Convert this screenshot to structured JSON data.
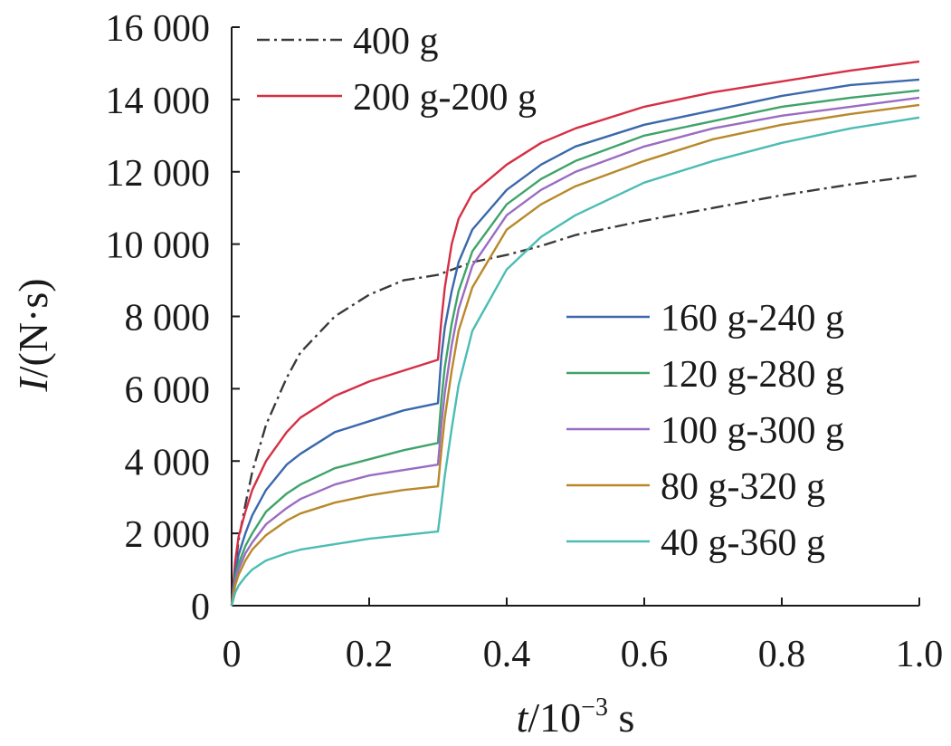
{
  "chart_data": {
    "type": "line",
    "xlabel": {
      "italic": "t",
      "rest": "/10",
      "sup": "−3",
      "unit": " s"
    },
    "ylabel": {
      "italic": "I",
      "rest": "/(N·s)"
    },
    "xlim": [
      0,
      1.0
    ],
    "ylim": [
      0,
      16000
    ],
    "x_ticks": [
      0,
      0.2,
      0.4,
      0.6,
      0.8,
      1.0
    ],
    "x_tick_labels": [
      "0",
      "0.2",
      "0.4",
      "0.6",
      "0.8",
      "1.0"
    ],
    "y_ticks": [
      0,
      2000,
      4000,
      6000,
      8000,
      10000,
      12000,
      14000,
      16000
    ],
    "y_tick_labels": [
      "0",
      "2 000",
      "4 000",
      "6 000",
      "8 000",
      "10 000",
      "12 000",
      "14 000",
      "16 000"
    ],
    "grid": false,
    "legends": [
      {
        "placement": "top-left",
        "entries": [
          "400 g",
          "200 g-200 g"
        ]
      },
      {
        "placement": "center-right",
        "entries": [
          "160 g-240 g",
          "120 g-280 g",
          "100 g-300 g",
          "80 g-320 g",
          "40 g-360 g"
        ]
      }
    ],
    "x": [
      0,
      0.005,
      0.01,
      0.02,
      0.03,
      0.05,
      0.08,
      0.1,
      0.15,
      0.2,
      0.25,
      0.3,
      0.32,
      0.35,
      0.4,
      0.45,
      0.5,
      0.6,
      0.7,
      0.8,
      0.9,
      1.0
    ],
    "series": [
      {
        "name": "400 g",
        "color": "#3a3a3a",
        "dash": "dash-dot",
        "x": [
          0,
          0.005,
          0.01,
          0.02,
          0.03,
          0.05,
          0.08,
          0.1,
          0.15,
          0.2,
          0.25,
          0.3,
          0.35,
          0.4,
          0.45,
          0.5,
          0.6,
          0.7,
          0.8,
          0.9,
          1.0
        ],
        "values": [
          0,
          1000,
          1800,
          2800,
          3700,
          5000,
          6300,
          7000,
          8000,
          8600,
          9000,
          9150,
          9500,
          9700,
          9950,
          10250,
          10650,
          11000,
          11350,
          11650,
          11900
        ]
      },
      {
        "name": "200 g-200 g",
        "color": "#d62f45",
        "x": [
          0,
          0.005,
          0.01,
          0.02,
          0.03,
          0.05,
          0.08,
          0.1,
          0.15,
          0.2,
          0.25,
          0.3,
          0.3,
          0.305,
          0.31,
          0.32,
          0.33,
          0.35,
          0.4,
          0.45,
          0.5,
          0.6,
          0.7,
          0.8,
          0.9,
          1.0
        ],
        "values": [
          0,
          1200,
          1900,
          2600,
          3200,
          4000,
          4800,
          5200,
          5800,
          6200,
          6500,
          6800,
          6800,
          7900,
          8800,
          10000,
          10700,
          11400,
          12200,
          12800,
          13200,
          13800,
          14200,
          14500,
          14800,
          15050
        ]
      },
      {
        "name": "160 g-240 g",
        "color": "#3a68ac",
        "x": [
          0,
          0.005,
          0.01,
          0.02,
          0.03,
          0.05,
          0.08,
          0.1,
          0.15,
          0.2,
          0.25,
          0.3,
          0.3,
          0.305,
          0.31,
          0.32,
          0.33,
          0.35,
          0.4,
          0.45,
          0.5,
          0.6,
          0.7,
          0.8,
          0.9,
          1.0
        ],
        "values": [
          0,
          900,
          1400,
          2000,
          2500,
          3200,
          3900,
          4200,
          4800,
          5100,
          5400,
          5600,
          5600,
          6900,
          7700,
          8700,
          9500,
          10400,
          11500,
          12200,
          12700,
          13300,
          13700,
          14100,
          14400,
          14550
        ]
      },
      {
        "name": "120 g-280 g",
        "color": "#3fa36a",
        "x": [
          0,
          0.005,
          0.01,
          0.02,
          0.03,
          0.05,
          0.08,
          0.1,
          0.15,
          0.2,
          0.25,
          0.3,
          0.3,
          0.305,
          0.31,
          0.32,
          0.33,
          0.35,
          0.4,
          0.45,
          0.5,
          0.6,
          0.7,
          0.8,
          0.9,
          1.0
        ],
        "values": [
          0,
          750,
          1150,
          1650,
          2000,
          2600,
          3100,
          3350,
          3800,
          4050,
          4300,
          4500,
          4500,
          5700,
          6600,
          7800,
          8700,
          9800,
          11100,
          11800,
          12300,
          13000,
          13400,
          13800,
          14050,
          14250
        ]
      },
      {
        "name": "100 g-300 g",
        "color": "#9a6cc2",
        "x": [
          0,
          0.005,
          0.01,
          0.02,
          0.03,
          0.05,
          0.08,
          0.1,
          0.15,
          0.2,
          0.25,
          0.3,
          0.3,
          0.305,
          0.31,
          0.32,
          0.33,
          0.35,
          0.4,
          0.45,
          0.5,
          0.6,
          0.7,
          0.8,
          0.9,
          1.0
        ],
        "values": [
          0,
          650,
          1000,
          1450,
          1750,
          2250,
          2700,
          2950,
          3350,
          3600,
          3750,
          3900,
          3900,
          5000,
          5900,
          7200,
          8200,
          9400,
          10800,
          11500,
          12000,
          12700,
          13200,
          13550,
          13800,
          14050
        ]
      },
      {
        "name": "80 g-320 g",
        "color": "#b8892b",
        "x": [
          0,
          0.005,
          0.01,
          0.02,
          0.03,
          0.05,
          0.08,
          0.1,
          0.15,
          0.2,
          0.25,
          0.3,
          0.3,
          0.305,
          0.31,
          0.32,
          0.33,
          0.35,
          0.4,
          0.45,
          0.5,
          0.6,
          0.7,
          0.8,
          0.9,
          1.0
        ],
        "values": [
          0,
          550,
          850,
          1250,
          1550,
          1950,
          2350,
          2550,
          2850,
          3050,
          3200,
          3300,
          3300,
          4300,
          5200,
          6500,
          7600,
          8800,
          10400,
          11100,
          11600,
          12300,
          12900,
          13300,
          13600,
          13850
        ]
      },
      {
        "name": "40 g-360 g",
        "color": "#4cbcb4",
        "x": [
          0,
          0.005,
          0.01,
          0.02,
          0.03,
          0.05,
          0.08,
          0.1,
          0.15,
          0.2,
          0.25,
          0.3,
          0.3,
          0.305,
          0.31,
          0.32,
          0.33,
          0.35,
          0.4,
          0.45,
          0.5,
          0.6,
          0.7,
          0.8,
          0.9,
          1.0
        ],
        "values": [
          0,
          350,
          550,
          800,
          1000,
          1250,
          1450,
          1550,
          1700,
          1850,
          1950,
          2050,
          2050,
          2800,
          3600,
          4900,
          6100,
          7600,
          9300,
          10200,
          10800,
          11700,
          12300,
          12800,
          13200,
          13500
        ]
      }
    ]
  }
}
